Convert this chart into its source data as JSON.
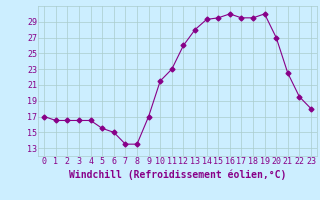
{
  "x": [
    0,
    1,
    2,
    3,
    4,
    5,
    6,
    7,
    8,
    9,
    10,
    11,
    12,
    13,
    14,
    15,
    16,
    17,
    18,
    19,
    20,
    21,
    22,
    23
  ],
  "y": [
    17,
    16.5,
    16.5,
    16.5,
    16.5,
    15.5,
    15.0,
    13.5,
    13.5,
    17,
    21.5,
    23,
    26,
    28,
    29.3,
    29.5,
    30,
    29.5,
    29.5,
    30,
    27,
    22.5,
    19.5,
    18
  ],
  "xlabel": "Windchill (Refroidissement éolien,°C)",
  "ylim": [
    12,
    31
  ],
  "xlim": [
    -0.5,
    23.5
  ],
  "yticks": [
    13,
    15,
    17,
    19,
    21,
    23,
    25,
    27,
    29
  ],
  "xticks": [
    0,
    1,
    2,
    3,
    4,
    5,
    6,
    7,
    8,
    9,
    10,
    11,
    12,
    13,
    14,
    15,
    16,
    17,
    18,
    19,
    20,
    21,
    22,
    23
  ],
  "line_color": "#880088",
  "marker": "D",
  "marker_size": 2.5,
  "bg_color": "#cceeff",
  "grid_color": "#aacccc",
  "label_color": "#880088",
  "tick_fontsize": 6.0,
  "xlabel_fontsize": 7.0
}
